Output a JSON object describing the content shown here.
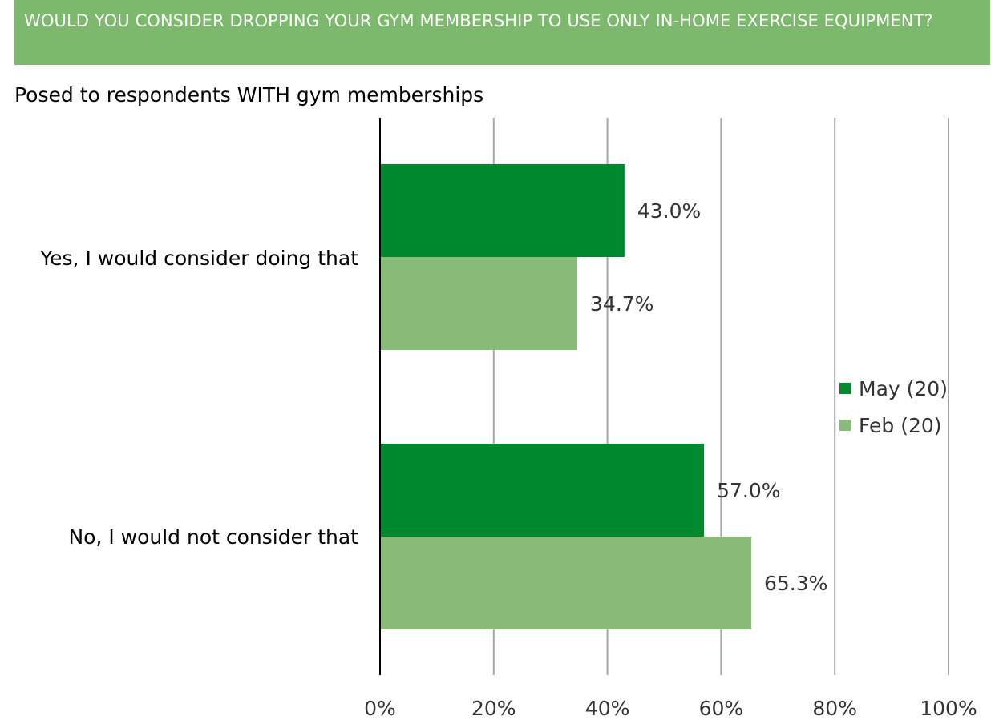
{
  "title": "WOULD YOU CONSIDER DROPPING YOUR GYM MEMBERSHIP TO USE ONLY IN-HOME EXERCISE EQUIPMENT?",
  "subtitle": "Posed to respondents WITH gym memberships",
  "colors": {
    "banner": "#7db96c",
    "may": "#00892f",
    "feb": "#88bb78",
    "grid": "#a6a6a6",
    "axis": "#000000",
    "text": "#333333"
  },
  "chart_data": {
    "type": "bar",
    "orientation": "horizontal",
    "categories": [
      "Yes, I would consider doing that",
      "No, I would not consider that"
    ],
    "series": [
      {
        "name": "May (20)",
        "values": [
          43.0,
          57.0
        ],
        "labels": [
          "43.0%",
          "57.0%"
        ]
      },
      {
        "name": "Feb (20)",
        "values": [
          34.7,
          65.3
        ],
        "labels": [
          "34.7%",
          "65.3%"
        ]
      }
    ],
    "xlim": [
      0,
      100
    ],
    "xticks": [
      "0%",
      "20%",
      "40%",
      "60%",
      "80%",
      "100%"
    ],
    "grid": true,
    "legend_position": "right"
  }
}
